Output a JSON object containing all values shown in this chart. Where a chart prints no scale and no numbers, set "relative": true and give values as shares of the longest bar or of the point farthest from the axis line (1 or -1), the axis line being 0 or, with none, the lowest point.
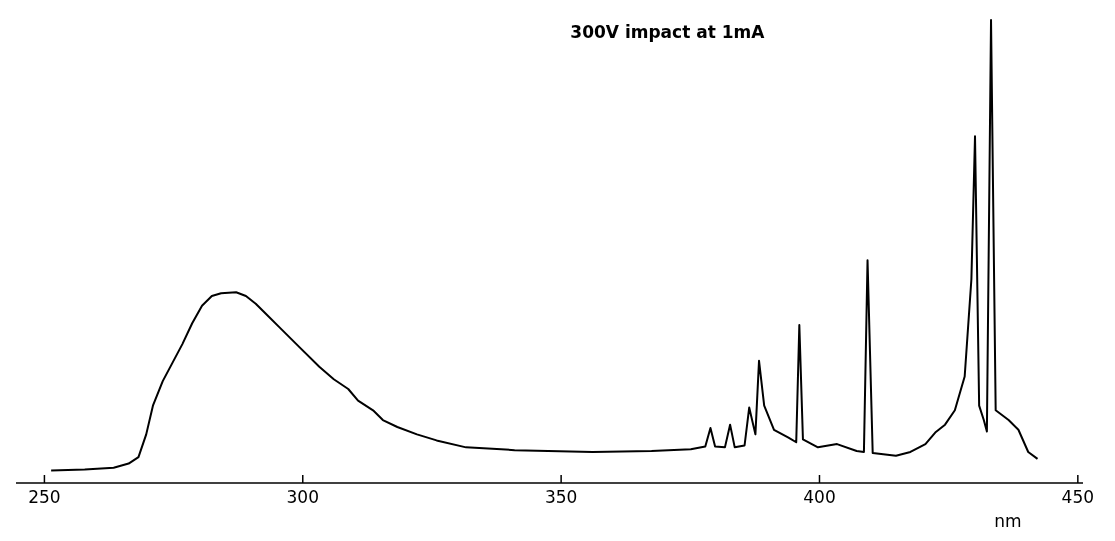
{
  "chart_data": {
    "type": "line",
    "relative": true,
    "xlabel": "nm",
    "annotations": [
      "300V impact at 1mA"
    ],
    "xlim": [
      244.5,
      451
    ],
    "xticks": [
      250,
      300,
      350,
      400,
      450
    ],
    "grid": false,
    "marker": "none",
    "line_style": "solid",
    "tick_labels": "x",
    "series": [
      {
        "color": "#000000",
        "x": [
          251.3,
          257.8,
          263.4,
          266.3,
          268.2,
          269.7,
          271.0,
          272.9,
          274.8,
          276.7,
          278.6,
          280.5,
          282.4,
          284.2,
          287.1,
          289.0,
          290.9,
          292.8,
          295.6,
          299.4,
          303.2,
          306.0,
          308.8,
          310.7,
          313.6,
          315.5,
          318.3,
          322.1,
          325.9,
          331.6,
          341.0,
          356.1,
          367.5,
          375.1,
          377.9,
          378.9,
          379.8,
          381.7,
          382.7,
          383.6,
          385.5,
          386.4,
          387.6,
          388.3,
          389.3,
          391.2,
          394.0,
          395.5,
          396.1,
          396.8,
          399.7,
          403.4,
          407.2,
          408.6,
          409.3,
          410.3,
          414.8,
          417.6,
          420.5,
          422.4,
          424.3,
          426.2,
          428.1,
          429.4,
          430.1,
          430.9,
          431.8,
          432.4,
          433.2,
          434.1,
          436.6,
          438.5,
          440.4,
          442.2
        ],
        "values": [
          0.027,
          0.029,
          0.033,
          0.042,
          0.056,
          0.105,
          0.167,
          0.22,
          0.26,
          0.3,
          0.345,
          0.383,
          0.404,
          0.41,
          0.412,
          0.404,
          0.387,
          0.366,
          0.335,
          0.293,
          0.251,
          0.224,
          0.203,
          0.178,
          0.157,
          0.136,
          0.121,
          0.105,
          0.092,
          0.077,
          0.071,
          0.067,
          0.069,
          0.073,
          0.079,
          0.119,
          0.079,
          0.077,
          0.126,
          0.077,
          0.081,
          0.163,
          0.105,
          0.264,
          0.167,
          0.115,
          0.098,
          0.088,
          0.341,
          0.094,
          0.077,
          0.084,
          0.069,
          0.067,
          0.481,
          0.065,
          0.059,
          0.067,
          0.084,
          0.109,
          0.126,
          0.157,
          0.23,
          0.44,
          0.749,
          0.167,
          0.136,
          0.111,
          1.0,
          0.157,
          0.136,
          0.115,
          0.067,
          0.052
        ]
      }
    ]
  }
}
